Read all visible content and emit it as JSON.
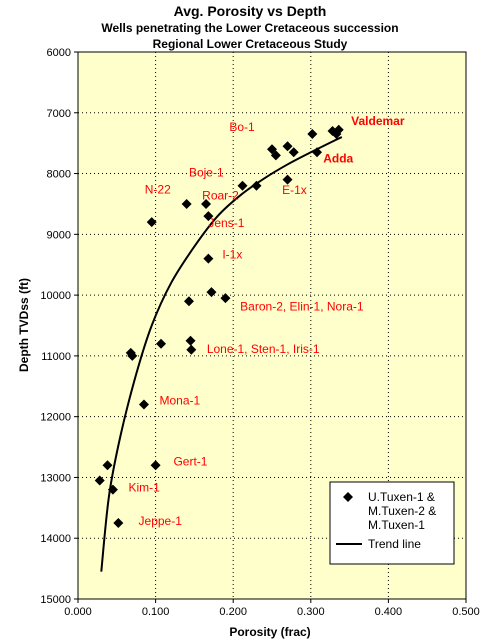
{
  "chart_data": {
    "type": "scatter",
    "title": "Avg. Porosity vs Depth",
    "subtitle_lines": [
      "Wells penetrating the Lower Cretaceous succession",
      "Regional Lower Cretaceous Study"
    ],
    "xlabel": "Porosity (frac)",
    "ylabel": "Depth TVDss (ft)",
    "xlim": [
      0,
      0.5
    ],
    "ylim": [
      6000,
      15000
    ],
    "y_inverted": true,
    "xticks": [
      "0.000",
      "0.100",
      "0.200",
      "0.300",
      "0.400",
      "0.500"
    ],
    "yticks": [
      "6000",
      "7000",
      "8000",
      "9000",
      "10000",
      "11000",
      "12000",
      "13000",
      "14000",
      "15000"
    ],
    "grid": "dotted",
    "plot_background": "#ffffcc",
    "marker_color": "#000000",
    "label_color": "#ff0000",
    "legend_position": "bottom-right",
    "legend": {
      "marker_lines": [
        "U.Tuxen-1 &",
        "M.Tuxen-2 &",
        "M.Tuxen-1"
      ],
      "line_label": "Trend line"
    },
    "series": [
      {
        "kind": "points",
        "points": [
          {
            "x": 0.028,
            "y": 13050
          },
          {
            "x": 0.038,
            "y": 12800
          },
          {
            "x": 0.045,
            "y": 13200
          },
          {
            "x": 0.052,
            "y": 13750
          },
          {
            "x": 0.068,
            "y": 10950
          },
          {
            "x": 0.07,
            "y": 11000
          },
          {
            "x": 0.085,
            "y": 11800
          },
          {
            "x": 0.095,
            "y": 8800
          },
          {
            "x": 0.1,
            "y": 12800
          },
          {
            "x": 0.107,
            "y": 10800
          },
          {
            "x": 0.14,
            "y": 8500
          },
          {
            "x": 0.143,
            "y": 10100
          },
          {
            "x": 0.145,
            "y": 10750
          },
          {
            "x": 0.146,
            "y": 10900
          },
          {
            "x": 0.165,
            "y": 8500
          },
          {
            "x": 0.168,
            "y": 8700
          },
          {
            "x": 0.168,
            "y": 9400
          },
          {
            "x": 0.172,
            "y": 9950
          },
          {
            "x": 0.19,
            "y": 10050
          },
          {
            "x": 0.212,
            "y": 8200
          },
          {
            "x": 0.23,
            "y": 8200
          },
          {
            "x": 0.25,
            "y": 7600
          },
          {
            "x": 0.255,
            "y": 7700
          },
          {
            "x": 0.27,
            "y": 7550
          },
          {
            "x": 0.27,
            "y": 8100
          },
          {
            "x": 0.278,
            "y": 7650
          },
          {
            "x": 0.302,
            "y": 7350
          },
          {
            "x": 0.308,
            "y": 7650
          },
          {
            "x": 0.328,
            "y": 7300
          },
          {
            "x": 0.333,
            "y": 7350
          },
          {
            "x": 0.336,
            "y": 7280
          }
        ]
      },
      {
        "kind": "trend_line",
        "points": [
          {
            "x": 0.03,
            "y": 14550
          },
          {
            "x": 0.04,
            "y": 13300
          },
          {
            "x": 0.055,
            "y": 12300
          },
          {
            "x": 0.075,
            "y": 11300
          },
          {
            "x": 0.095,
            "y": 10500
          },
          {
            "x": 0.12,
            "y": 9800
          },
          {
            "x": 0.15,
            "y": 9200
          },
          {
            "x": 0.18,
            "y": 8700
          },
          {
            "x": 0.21,
            "y": 8350
          },
          {
            "x": 0.24,
            "y": 8080
          },
          {
            "x": 0.27,
            "y": 7850
          },
          {
            "x": 0.3,
            "y": 7650
          },
          {
            "x": 0.33,
            "y": 7460
          },
          {
            "x": 0.34,
            "y": 7400
          }
        ]
      }
    ],
    "annotations": [
      {
        "text": "Bo-1",
        "x": 0.195,
        "y": 7300,
        "bold": false
      },
      {
        "text": "Valdemar",
        "x": 0.352,
        "y": 7200,
        "bold": true
      },
      {
        "text": "Adda",
        "x": 0.316,
        "y": 7820,
        "bold": true
      },
      {
        "text": "Boje-1",
        "x": 0.143,
        "y": 8050,
        "bold": false
      },
      {
        "text": "E-1x",
        "x": 0.263,
        "y": 8340,
        "bold": false
      },
      {
        "text": "N-22",
        "x": 0.086,
        "y": 8330,
        "bold": false
      },
      {
        "text": "Roar-2",
        "x": 0.16,
        "y": 8430,
        "bold": false
      },
      {
        "text": "Jens-1",
        "x": 0.168,
        "y": 8880,
        "bold": false
      },
      {
        "text": "I-1x",
        "x": 0.186,
        "y": 9400,
        "bold": false
      },
      {
        "text": "Baron-2, Elin-1, Nora-1",
        "x": 0.209,
        "y": 10250,
        "bold": false
      },
      {
        "text": "Lone-1, Sten-1, Iris-1",
        "x": 0.166,
        "y": 10950,
        "bold": false
      },
      {
        "text": "Mona-1",
        "x": 0.105,
        "y": 11800,
        "bold": false
      },
      {
        "text": "Gert-1",
        "x": 0.123,
        "y": 12800,
        "bold": false
      },
      {
        "text": "Kim-1",
        "x": 0.065,
        "y": 13230,
        "bold": false
      },
      {
        "text": "Jeppe-1",
        "x": 0.078,
        "y": 13780,
        "bold": false
      }
    ]
  }
}
